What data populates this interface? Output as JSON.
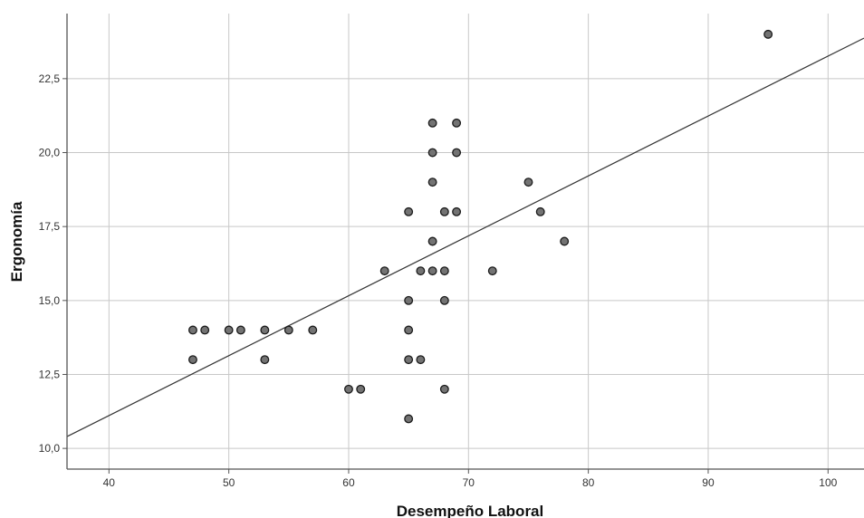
{
  "chart_data": {
    "type": "scatter",
    "xlabel": "Desempeño Laboral",
    "ylabel": "Ergonomía",
    "xlim": [
      36.5,
      103
    ],
    "ylim": [
      9.3,
      24.7
    ],
    "x_ticks": [
      40,
      50,
      60,
      70,
      80,
      90,
      100
    ],
    "x_tick_labels": [
      "40",
      "50",
      "60",
      "70",
      "80",
      "90",
      "100"
    ],
    "y_ticks": [
      10,
      12.5,
      15,
      17.5,
      20,
      22.5
    ],
    "y_tick_labels": [
      "10,0",
      "12,5",
      "15,0",
      "17,5",
      "20,0",
      "22,5"
    ],
    "grid": true,
    "points": [
      {
        "x": 47,
        "y": 14
      },
      {
        "x": 47,
        "y": 13
      },
      {
        "x": 48,
        "y": 14
      },
      {
        "x": 50,
        "y": 14
      },
      {
        "x": 51,
        "y": 14
      },
      {
        "x": 53,
        "y": 14
      },
      {
        "x": 53,
        "y": 13
      },
      {
        "x": 55,
        "y": 14
      },
      {
        "x": 57,
        "y": 14
      },
      {
        "x": 60,
        "y": 12
      },
      {
        "x": 61,
        "y": 12
      },
      {
        "x": 63,
        "y": 16
      },
      {
        "x": 65,
        "y": 18
      },
      {
        "x": 65,
        "y": 15
      },
      {
        "x": 65,
        "y": 14
      },
      {
        "x": 65,
        "y": 13
      },
      {
        "x": 65,
        "y": 11
      },
      {
        "x": 66,
        "y": 16
      },
      {
        "x": 66,
        "y": 13
      },
      {
        "x": 67,
        "y": 21
      },
      {
        "x": 67,
        "y": 20
      },
      {
        "x": 67,
        "y": 19
      },
      {
        "x": 67,
        "y": 17
      },
      {
        "x": 67,
        "y": 16
      },
      {
        "x": 68,
        "y": 18
      },
      {
        "x": 68,
        "y": 16
      },
      {
        "x": 68,
        "y": 15
      },
      {
        "x": 68,
        "y": 12
      },
      {
        "x": 69,
        "y": 21
      },
      {
        "x": 69,
        "y": 20
      },
      {
        "x": 69,
        "y": 18
      },
      {
        "x": 72,
        "y": 16
      },
      {
        "x": 75,
        "y": 19
      },
      {
        "x": 76,
        "y": 18
      },
      {
        "x": 78,
        "y": 17
      },
      {
        "x": 95,
        "y": 24
      }
    ],
    "fit_line": {
      "x": [
        36.5,
        103
      ],
      "y": [
        10.4,
        23.87
      ]
    },
    "colors": {
      "marker_fill": "#737373",
      "marker_stroke": "#1a1a1a",
      "grid": "#c8c8c8",
      "axis": "#555555",
      "fit_line": "#333333"
    }
  }
}
